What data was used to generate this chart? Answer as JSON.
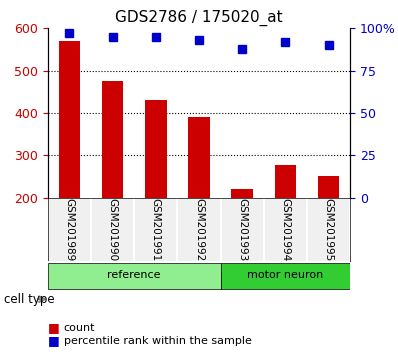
{
  "title": "GDS2786 / 175020_at",
  "samples": [
    "GSM201989",
    "GSM201990",
    "GSM201991",
    "GSM201992",
    "GSM201993",
    "GSM201994",
    "GSM201995"
  ],
  "counts": [
    570,
    475,
    430,
    390,
    220,
    278,
    250
  ],
  "percentiles": [
    97,
    95,
    95,
    93,
    88,
    92,
    90
  ],
  "groups": [
    {
      "label": "reference",
      "indices": [
        0,
        1,
        2,
        3
      ],
      "color": "#90EE90"
    },
    {
      "label": "motor neuron",
      "indices": [
        4,
        5,
        6
      ],
      "color": "#32CD32"
    }
  ],
  "left_ylim": [
    200,
    600
  ],
  "right_ylim": [
    0,
    100
  ],
  "left_yticks": [
    200,
    300,
    400,
    500,
    600
  ],
  "right_yticks": [
    0,
    25,
    50,
    75,
    100
  ],
  "right_yticklabels": [
    "0",
    "25",
    "50",
    "75",
    "100%"
  ],
  "bar_color": "#cc0000",
  "dot_color": "#0000cc",
  "grid_color": "#000000",
  "bg_color": "#f0f0f0",
  "cell_type_label": "cell type",
  "legend": [
    {
      "label": "count",
      "color": "#cc0000"
    },
    {
      "label": "percentile rank within the sample",
      "color": "#0000cc"
    }
  ]
}
